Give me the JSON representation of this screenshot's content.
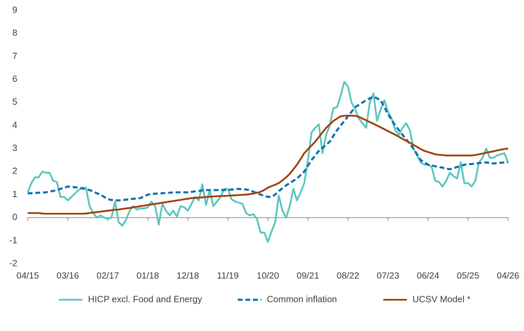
{
  "chart_data": {
    "type": "line",
    "categories": [
      "04/15",
      null,
      null,
      null,
      null,
      null,
      null,
      null,
      null,
      null,
      null,
      "03/16",
      null,
      null,
      null,
      null,
      null,
      null,
      null,
      null,
      null,
      null,
      "02/17",
      null,
      null,
      null,
      null,
      null,
      null,
      null,
      null,
      null,
      null,
      "01/18",
      null,
      null,
      null,
      null,
      null,
      null,
      null,
      null,
      null,
      null,
      "12/18",
      null,
      null,
      null,
      null,
      null,
      null,
      null,
      null,
      null,
      null,
      "11/19",
      null,
      null,
      null,
      null,
      null,
      null,
      null,
      null,
      null,
      null,
      "10/20",
      null,
      null,
      null,
      null,
      null,
      null,
      null,
      null,
      null,
      null,
      "09/21",
      null,
      null,
      null,
      null,
      null,
      null,
      null,
      null,
      null,
      null,
      "08/22",
      null,
      null,
      null,
      null,
      null,
      null,
      null,
      null,
      null,
      null,
      "07/23",
      null,
      null,
      null,
      null,
      null,
      null,
      null,
      null,
      null,
      null,
      "06/24",
      null,
      null,
      null,
      null,
      null,
      null,
      null,
      null,
      null,
      null,
      "05/25",
      null,
      null,
      null,
      null,
      null,
      null,
      null,
      null,
      null,
      null,
      "04/26"
    ],
    "series": [
      {
        "name": "HICP excl. Food and Energy",
        "color": "#5cc6c0",
        "dash": false,
        "values": [
          1.1,
          1.5,
          1.75,
          1.75,
          2.0,
          1.95,
          1.95,
          1.6,
          1.55,
          0.9,
          0.9,
          0.75,
          0.9,
          1.05,
          1.2,
          1.3,
          1.3,
          0.5,
          0.2,
          0.0,
          0.1,
          0.0,
          -0.05,
          0.0,
          0.7,
          -0.2,
          -0.35,
          -0.1,
          0.3,
          0.5,
          0.35,
          0.4,
          0.4,
          0.45,
          0.7,
          0.5,
          -0.3,
          0.6,
          0.3,
          0.1,
          0.3,
          0.05,
          0.5,
          0.45,
          0.3,
          0.6,
          0.9,
          0.75,
          1.45,
          0.55,
          1.2,
          0.5,
          0.7,
          0.9,
          1.25,
          1.25,
          0.8,
          0.7,
          0.65,
          0.6,
          0.2,
          0.1,
          0.15,
          -0.05,
          -0.65,
          -0.65,
          -1.05,
          -0.6,
          -0.2,
          0.95,
          0.3,
          0.0,
          0.5,
          1.25,
          0.75,
          1.1,
          1.5,
          2.5,
          3.7,
          3.9,
          4.05,
          2.8,
          3.6,
          4.0,
          4.75,
          4.8,
          5.3,
          5.9,
          5.7,
          5.0,
          4.7,
          4.3,
          4.1,
          3.9,
          5.0,
          5.4,
          4.2,
          4.7,
          5.1,
          4.6,
          4.3,
          3.8,
          3.6,
          3.9,
          4.1,
          3.8,
          3.0,
          2.7,
          2.4,
          2.3,
          2.3,
          2.2,
          1.6,
          1.55,
          1.35,
          1.6,
          1.95,
          1.8,
          1.7,
          2.4,
          1.5,
          1.5,
          1.35,
          1.6,
          2.4,
          2.6,
          3.0,
          2.6,
          2.6,
          2.7,
          2.75,
          2.8,
          2.4
        ]
      },
      {
        "name": "Common inflation",
        "color": "#0f72ad",
        "dash": true,
        "values": [
          1.05,
          1.06,
          1.07,
          1.08,
          1.09,
          1.1,
          1.13,
          1.16,
          1.2,
          1.25,
          1.3,
          1.35,
          1.34,
          1.32,
          1.3,
          1.27,
          1.23,
          1.2,
          1.13,
          1.06,
          1.0,
          0.9,
          0.8,
          0.77,
          0.75,
          0.75,
          0.76,
          0.78,
          0.8,
          0.82,
          0.83,
          0.85,
          0.93,
          1.0,
          1.02,
          1.04,
          1.05,
          1.06,
          1.07,
          1.08,
          1.1,
          1.1,
          1.1,
          1.1,
          1.1,
          1.12,
          1.14,
          1.16,
          1.18,
          1.2,
          1.2,
          1.2,
          1.2,
          1.2,
          1.2,
          1.2,
          1.22,
          1.23,
          1.25,
          1.23,
          1.22,
          1.2,
          1.13,
          1.07,
          1.0,
          0.95,
          0.9,
          0.9,
          1.0,
          1.15,
          1.28,
          1.4,
          1.5,
          1.6,
          1.7,
          1.85,
          2.0,
          2.25,
          2.5,
          2.7,
          2.9,
          3.03,
          3.16,
          3.3,
          3.55,
          3.8,
          4.0,
          4.2,
          4.4,
          4.6,
          4.8,
          4.9,
          5.0,
          5.1,
          5.18,
          5.25,
          5.18,
          5.1,
          4.8,
          4.5,
          4.25,
          4.0,
          3.8,
          3.6,
          3.4,
          3.2,
          3.0,
          2.75,
          2.5,
          2.4,
          2.3,
          2.27,
          2.23,
          2.2,
          2.17,
          2.13,
          2.1,
          2.15,
          2.2,
          2.25,
          2.3,
          2.32,
          2.33,
          2.35,
          2.37,
          2.38,
          2.4,
          2.37,
          2.35,
          2.37,
          2.38,
          2.4,
          2.4
        ]
      },
      {
        "name": "UCSV Model *",
        "color": "#a0430f",
        "dash": false,
        "values": [
          0.2,
          0.2,
          0.2,
          0.2,
          0.18,
          0.17,
          0.17,
          0.17,
          0.17,
          0.17,
          0.17,
          0.17,
          0.17,
          0.17,
          0.17,
          0.17,
          0.18,
          0.2,
          0.22,
          0.24,
          0.26,
          0.28,
          0.3,
          0.32,
          0.34,
          0.35,
          0.38,
          0.4,
          0.42,
          0.45,
          0.47,
          0.5,
          0.52,
          0.55,
          0.57,
          0.6,
          0.62,
          0.65,
          0.67,
          0.7,
          0.72,
          0.75,
          0.77,
          0.8,
          0.82,
          0.85,
          0.86,
          0.87,
          0.88,
          0.9,
          0.91,
          0.92,
          0.93,
          0.94,
          0.94,
          0.95,
          0.96,
          0.97,
          0.98,
          0.99,
          1.0,
          1.02,
          1.05,
          1.08,
          1.12,
          1.2,
          1.3,
          1.37,
          1.43,
          1.5,
          1.62,
          1.75,
          1.9,
          2.1,
          2.3,
          2.55,
          2.8,
          2.97,
          3.13,
          3.3,
          3.5,
          3.7,
          3.9,
          4.05,
          4.2,
          4.3,
          4.4,
          4.42,
          4.43,
          4.43,
          4.42,
          4.38,
          4.3,
          4.23,
          4.15,
          4.08,
          4.0,
          3.92,
          3.84,
          3.76,
          3.68,
          3.6,
          3.51,
          3.42,
          3.34,
          3.25,
          3.16,
          3.07,
          2.98,
          2.9,
          2.85,
          2.8,
          2.75,
          2.73,
          2.72,
          2.7,
          2.7,
          2.7,
          2.7,
          2.7,
          2.7,
          2.7,
          2.7,
          2.72,
          2.75,
          2.78,
          2.82,
          2.85,
          2.88,
          2.92,
          2.95,
          2.98,
          3.0
        ]
      }
    ],
    "ylim": [
      -2,
      9
    ],
    "yticks": [
      -2,
      -1,
      0,
      1,
      2,
      3,
      4,
      5,
      6,
      7,
      8,
      9
    ],
    "grid": false,
    "legend": "bottom"
  }
}
